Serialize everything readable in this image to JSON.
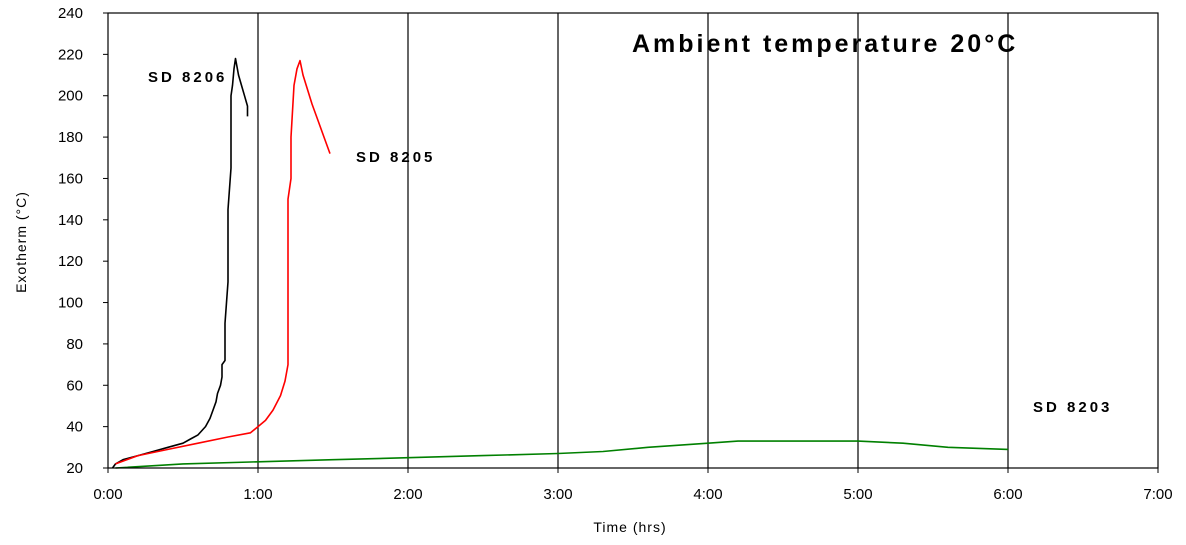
{
  "chart_data": {
    "type": "line",
    "title": "Ambient temperature 20°C",
    "xlabel": "Time (hrs)",
    "ylabel": "Exotherm (°C)",
    "xlim": [
      0,
      7
    ],
    "ylim": [
      20,
      240
    ],
    "x_ticks": [
      "0:00",
      "1:00",
      "2:00",
      "3:00",
      "4:00",
      "5:00",
      "6:00",
      "7:00"
    ],
    "y_ticks": [
      20,
      40,
      60,
      80,
      100,
      120,
      140,
      160,
      180,
      200,
      220,
      240
    ],
    "grid": "vertical",
    "series": [
      {
        "name": "SD 8206",
        "color": "#000000",
        "x": [
          0.03,
          0.05,
          0.1,
          0.2,
          0.3,
          0.4,
          0.5,
          0.55,
          0.6,
          0.65,
          0.68,
          0.7,
          0.72,
          0.73,
          0.75,
          0.76,
          0.76,
          0.78,
          0.78,
          0.8,
          0.8,
          0.82,
          0.82,
          0.83,
          0.84,
          0.85,
          0.87,
          0.89,
          0.91,
          0.93,
          0.93
        ],
        "y": [
          20,
          22,
          24,
          26,
          28,
          30,
          32,
          34,
          36,
          40,
          44,
          48,
          52,
          56,
          60,
          64,
          70,
          72,
          90,
          110,
          145,
          165,
          200,
          205,
          213,
          218,
          210,
          205,
          200,
          195,
          190
        ]
      },
      {
        "name": "SD 8205",
        "color": "#ff0000",
        "x": [
          0.05,
          0.2,
          0.4,
          0.6,
          0.8,
          0.95,
          1.0,
          1.05,
          1.1,
          1.15,
          1.18,
          1.2,
          1.2,
          1.22,
          1.22,
          1.24,
          1.26,
          1.28,
          1.3,
          1.33,
          1.36,
          1.4,
          1.44,
          1.48
        ],
        "y": [
          22,
          26,
          29,
          32,
          35,
          37,
          40,
          43,
          48,
          55,
          62,
          70,
          150,
          160,
          180,
          205,
          213,
          217,
          210,
          203,
          196,
          188,
          180,
          172
        ]
      },
      {
        "name": "SD 8203",
        "color": "#008000",
        "x": [
          0.05,
          0.5,
          1.0,
          1.5,
          2.0,
          2.5,
          3.0,
          3.3,
          3.6,
          4.0,
          4.2,
          4.5,
          5.0,
          5.3,
          5.6,
          6.0
        ],
        "y": [
          20,
          22,
          23,
          24,
          25,
          26,
          27,
          28,
          30,
          32,
          33,
          33,
          33,
          32,
          30,
          29
        ]
      }
    ]
  }
}
